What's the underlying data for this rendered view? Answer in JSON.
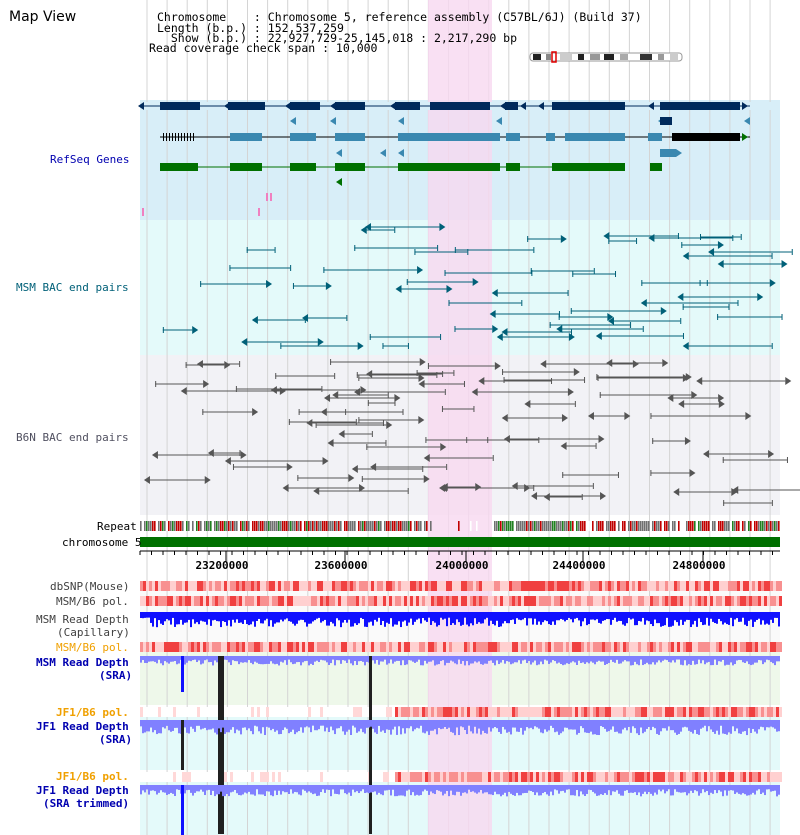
{
  "app": {
    "title": "Map View"
  },
  "header": {
    "chromosome_line": "Chromosome    : Chromosome 5, reference assembly (C57BL/6J) (Build 37)",
    "length_line": "Length (b.p.) : 152,537,259",
    "show_line": "  Show (b.p.) : 22,927,729-25,145,018 : 2,217,290 bp",
    "coverage_line": "Read coverage check span : 10,000"
  },
  "tracks": {
    "refseq": "RefSeq Genes",
    "msm_bac": "MSM BAC end pairs",
    "b6n_bac": "B6N BAC end pairs",
    "repeat": "Repeat",
    "chromosome": "chromosome 5",
    "dbsnp": "dbSNP(Mouse)",
    "msm_b6_pol": "MSM/B6 pol.",
    "msm_depth_cap_1": "MSM Read Depth",
    "msm_depth_cap_2": "(Capillary)",
    "msm_b6_pol_2": "MSM/B6 pol.",
    "msm_depth_sra_1": "MSM Read Depth",
    "msm_depth_sra_2": "(SRA)",
    "jf1_b6_pol_1": "JF1/B6 pol.",
    "jf1_depth_sra_1": "JF1 Read Depth",
    "jf1_depth_sra_2": "(SRA)",
    "jf1_b6_pol_2": "JF1/B6 pol.",
    "jf1_depth_trim_1": "JF1 Read Depth",
    "jf1_depth_trim_2": "(SRA trimmed)"
  },
  "axis": {
    "ticks": [
      "23200000",
      "23600000",
      "24000000",
      "24400000",
      "24800000"
    ]
  },
  "colors": {
    "highlight": "#f8d8f0",
    "refseq_bg": "#d8eef8",
    "msm_bac_bg": "#e4fafa",
    "b6n_bac_bg": "#f2f2f6",
    "chromosome_bar": "#007000",
    "navy": "#002a5c",
    "teal": "#3a88b0",
    "green": "#007000",
    "depth_blue": "#1010ff",
    "depth_light": "#8080ff",
    "label_blue": "#0000b0",
    "label_orange": "#f0a000",
    "label_msm": "#006078"
  }
}
